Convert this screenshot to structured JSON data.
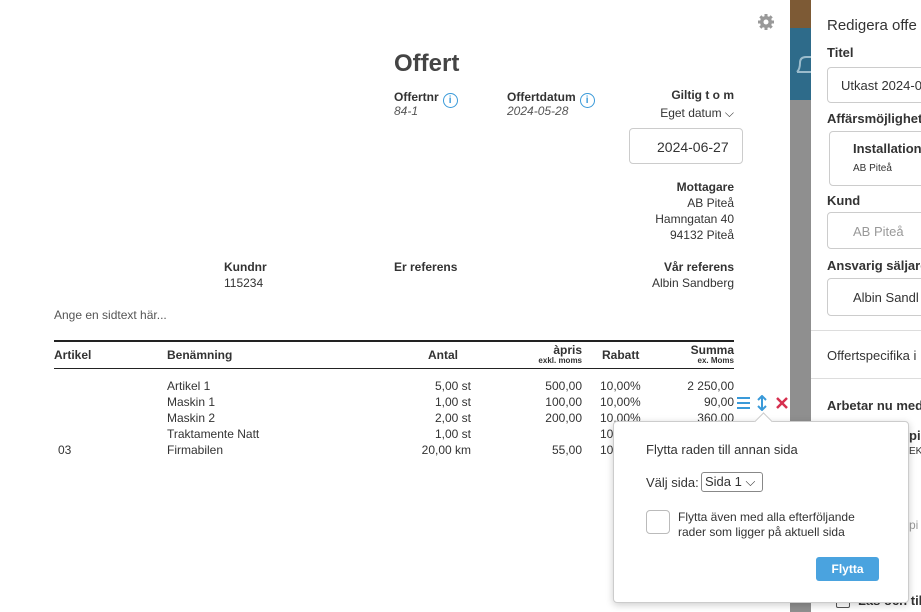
{
  "document": {
    "title": "Offert",
    "offer_no_label": "Offertnr",
    "offer_no": "84-1",
    "offer_date_label": "Offertdatum",
    "offer_date": "2024-05-28",
    "valid_label": "Giltig t o m",
    "valid_mode": "Eget datum",
    "valid_date": "2024-06-27",
    "recipient_label": "Mottagare",
    "recipient": [
      "AB Piteå",
      "Hamngatan 40",
      "94132 Piteå"
    ],
    "customer_no_label": "Kundnr",
    "customer_no": "115234",
    "their_ref_label": "Er referens",
    "our_ref_label": "Vår referens",
    "our_ref": "Albin Sandberg",
    "page_text": "Ange en sidtext här...",
    "columns": {
      "article": "Artikel",
      "name": "Benämning",
      "qty": "Antal",
      "price": "àpris",
      "price_note": "exkl. moms",
      "discount": "Rabatt",
      "sum": "Summa",
      "sum_note": "ex. Moms"
    },
    "rows": [
      {
        "name": "Artikel 1",
        "qty": "5,00 st",
        "price": "500,00",
        "discount": "10,00%",
        "sum": "2 250,00"
      },
      {
        "name": "Maskin 1",
        "qty": "1,00 st",
        "price": "100,00",
        "discount": "10,00%",
        "sum": "90,00"
      },
      {
        "name": "Maskin 2",
        "qty": "2,00 st",
        "price": "200,00",
        "discount": "10,00%",
        "sum": "360,00"
      },
      {
        "name": "Traktamente Natt",
        "qty": "1,00 st",
        "discount": "10"
      },
      {
        "article": "03",
        "name": "Firmabilen",
        "qty": "20,00 km",
        "price": "55,00",
        "discount": "10"
      }
    ]
  },
  "popup": {
    "title": "Flytta raden till annan sida",
    "select_label": "Välj sida:",
    "select_value": "Sida 1",
    "checkbox_label": "Flytta även med alla efterföljande rader som ligger på aktuell sida",
    "button": "Flytta"
  },
  "panel": {
    "title": "Redigera offe",
    "title_label": "Titel",
    "title_value": "Utkast 2024-0",
    "opportunity_label": "Affärsmöjlighet",
    "opportunity_name": "Installation",
    "opportunity_customer": "AB Piteå",
    "customer_label": "Kund",
    "customer_value": "AB Piteå",
    "seller_label": "Ansvarig säljare",
    "seller_value": "Albin Sandl",
    "specific_label": "Offertspecifika i",
    "working_label": "Arbetar nu med",
    "frag1": "pi",
    "frag2": "EK",
    "frag3": "pi",
    "read_label": "Läs och til"
  }
}
